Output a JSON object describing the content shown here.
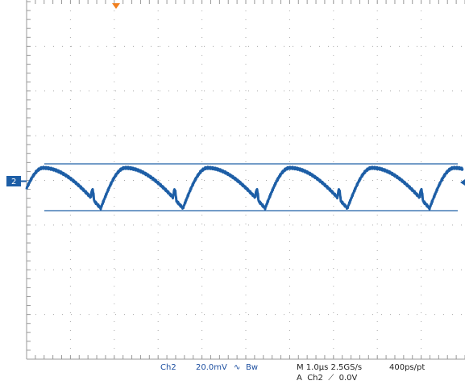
{
  "channel_marker": "2",
  "readout": {
    "channel": "Ch2",
    "scale": "20.0mV",
    "coupling": "∿",
    "bandwidth": "Bw",
    "timebase": "M 1.0µs 2.5GS/s",
    "trigger": "A  Ch2  ⟋  0.0V",
    "resolution": "400ps/pt"
  }
}
